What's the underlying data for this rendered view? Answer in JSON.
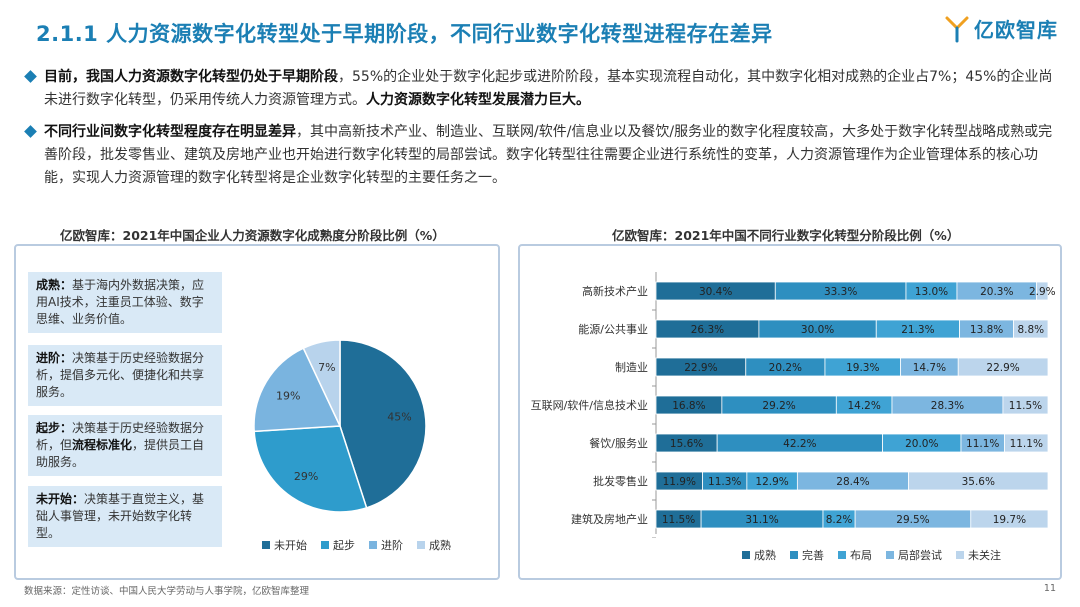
{
  "title": "2.1.1 人力资源数字化转型处于早期阶段，不同行业数字化转型进程存在差异",
  "logo": "亿欧智库",
  "bullets": [
    {
      "lead": "目前，我国人力资源数字化转型仍处于早期阶段",
      "text": "，55%的企业处于数字化起步或进阶阶段，基本实现流程自动化，其中数字化相对成熟的企业占7%；45%的企业尚未进行数字化转型，仍采用传统人力资源管理方式。",
      "tail": "人力资源数字化转型发展潜力巨大。"
    },
    {
      "lead": "不同行业间数字化转型程度存在明显差异",
      "text": "，其中高新技术产业、制造业、互联网/软件/信息业以及餐饮/服务业的数字化程度较高，大多处于数字化转型战略成熟或完善阶段，批发零售业、建筑及房地产业也开始进行数字化转型的局部尝试。数字化转型往往需要企业进行系统性的变革，人力资源管理作为企业管理体系的核心功能，实现人力资源管理的数字化转型将是企业数字化转型的主要任务之一。",
      "tail": ""
    }
  ],
  "left_panel": {
    "stages": [
      {
        "name": "成熟：",
        "desc": "基于海内外数据决策，应用AI技术，注重员工体验、数字思维、业务价值。",
        "bold": ""
      },
      {
        "name": "进阶：",
        "desc": "决策基于历史经验数据分析，提倡多元化、便捷化和共享服务。",
        "bold": ""
      },
      {
        "name": "起步：",
        "desc_pre": "决策基于历史经验数据分析，但",
        "bold": "流程标准化",
        "desc_post": "，提供员工自助服务。"
      },
      {
        "name": "未开始：",
        "desc": "决策基于直觉主义，基础人事管理，未开始数字化转型。",
        "bold": ""
      }
    ]
  },
  "chart_data": [
    {
      "type": "pie",
      "title": "亿欧智库：2021年中国企业人力资源数字化成熟度分阶段比例（%）",
      "categories": [
        "未开始",
        "起步",
        "进阶",
        "成熟"
      ],
      "values": [
        45,
        29,
        19,
        7
      ],
      "labels": [
        "45%",
        "29%",
        "19%",
        "7%"
      ],
      "colors": [
        "#1f6e98",
        "#2e9ccc",
        "#7ab4df",
        "#b8d3ec"
      ],
      "legend_position": "bottom"
    },
    {
      "type": "bar",
      "orientation": "horizontal-stacked",
      "title": "亿欧智库：2021年中国不同行业数字化转型分阶段比例（%）",
      "categories": [
        "高新技术产业",
        "能源/公共事业",
        "制造业",
        "互联网/软件/信息技术业",
        "餐饮/服务业",
        "批发零售业",
        "建筑及房地产业"
      ],
      "series": [
        {
          "name": "成熟",
          "color": "#1f6e98",
          "values": [
            30.4,
            26.3,
            22.9,
            16.8,
            15.6,
            11.9,
            11.5
          ]
        },
        {
          "name": "完善",
          "color": "#2e8fc0",
          "values": [
            33.3,
            30.0,
            20.2,
            29.2,
            42.2,
            11.3,
            31.1
          ]
        },
        {
          "name": "布局",
          "color": "#3fa3d4",
          "values": [
            13.0,
            21.3,
            19.3,
            14.2,
            20.0,
            12.9,
            8.2
          ]
        },
        {
          "name": "局部尝试",
          "color": "#7cb6e0",
          "values": [
            20.3,
            13.8,
            14.7,
            28.3,
            11.1,
            28.4,
            29.5
          ]
        },
        {
          "name": "未关注",
          "color": "#bcd5ec",
          "values": [
            2.9,
            8.8,
            22.9,
            11.5,
            11.1,
            35.6,
            19.7
          ]
        }
      ],
      "legend_position": "bottom"
    }
  ],
  "footer": {
    "source": "数据来源：定性访谈、中国人民大学劳动与人事学院，亿欧智库整理",
    "page": "11"
  }
}
